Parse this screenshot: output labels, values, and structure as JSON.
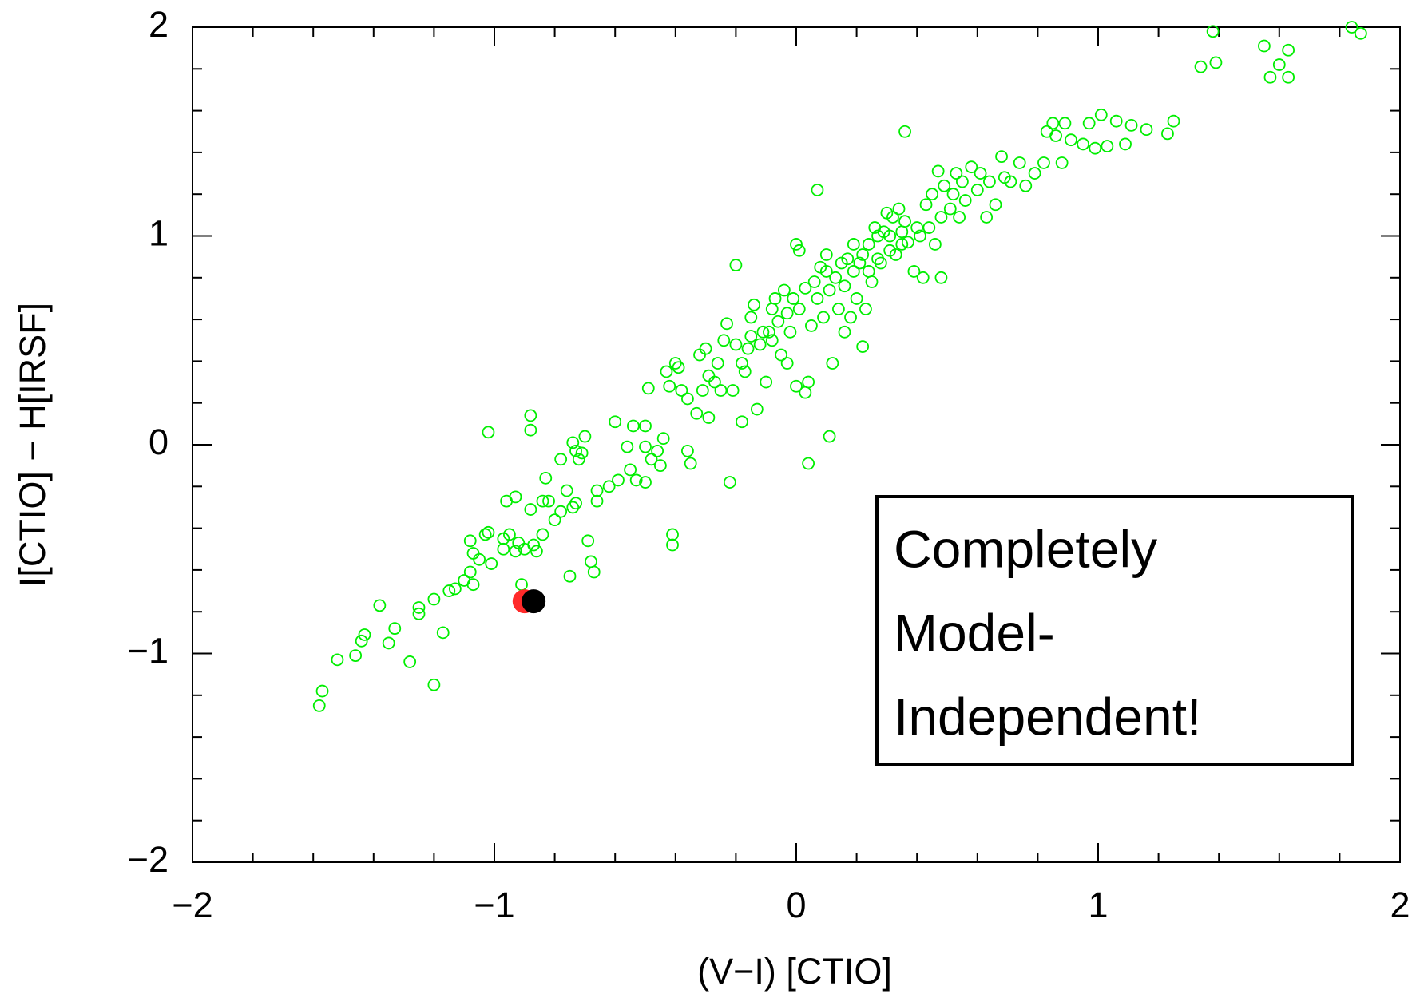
{
  "chart_data": {
    "type": "scatter",
    "x_label": "(V−I) [CTIO]",
    "y_label": "I[CTIO] − H[IRSF]",
    "annotation": [
      "Completely",
      "Model-",
      "Independent!"
    ],
    "xlim": [
      -2,
      2
    ],
    "ylim": [
      -2,
      2
    ],
    "xticks": [
      {
        "value": -2,
        "label": "−2"
      },
      {
        "value": -1,
        "label": "−1"
      },
      0,
      1,
      2
    ],
    "yticks": [
      {
        "value": -2,
        "label": "−2"
      },
      {
        "value": -1,
        "label": "−1"
      },
      0,
      1,
      2
    ],
    "x_minor_ticks": [
      -1.8,
      -1.6,
      -1.4,
      -1.2,
      -0.8,
      -0.6,
      -0.4,
      -0.2,
      0.2,
      0.4,
      0.6,
      0.8,
      1.2,
      1.4,
      1.6,
      1.8
    ],
    "y_minor_ticks": [
      -1.8,
      -1.6,
      -1.4,
      -1.2,
      -0.8,
      -0.6,
      -0.4,
      -0.2,
      0.2,
      0.4,
      0.6,
      0.8,
      1.2,
      1.4,
      1.6,
      1.8
    ],
    "series": [
      {
        "color": "#00ee00",
        "marker": "open-circle",
        "x": [
          -1.58,
          -1.57,
          -1.52,
          -1.46,
          -1.44,
          -1.43,
          -1.38,
          -1.35,
          -1.33,
          -1.28,
          -1.25,
          -1.25,
          -1.2,
          -1.2,
          -1.17,
          -1.15,
          -1.13,
          -1.1,
          -1.08,
          -1.07,
          -1.08,
          -1.07,
          -1.05,
          -1.03,
          -1.02,
          -1.02,
          -1.01,
          -0.97,
          -0.97,
          -0.96,
          -0.95,
          -0.93,
          -0.93,
          -0.92,
          -0.91,
          -0.9,
          -0.88,
          -0.88,
          -0.88,
          -0.87,
          -0.86,
          -0.84,
          -0.84,
          -0.83,
          -0.82,
          -0.8,
          -0.78,
          -0.78,
          -0.76,
          -0.75,
          -0.74,
          -0.74,
          -0.73,
          -0.73,
          -0.72,
          -0.71,
          -0.7,
          -0.69,
          -0.68,
          -0.67,
          -0.66,
          -0.66,
          -0.62,
          -0.6,
          -0.59,
          -0.56,
          -0.55,
          -0.54,
          -0.53,
          -0.5,
          -0.5,
          -0.5,
          -0.49,
          -0.48,
          -0.46,
          -0.45,
          -0.44,
          -0.43,
          -0.42,
          -0.41,
          -0.41,
          -0.4,
          -0.39,
          -0.38,
          -0.36,
          -0.36,
          -0.35,
          -0.33,
          -0.32,
          -0.31,
          -0.3,
          -0.29,
          -0.29,
          -0.27,
          -0.26,
          -0.25,
          -0.24,
          -0.23,
          -0.22,
          -0.21,
          -0.2,
          -0.2,
          -0.18,
          -0.18,
          -0.17,
          -0.16,
          -0.15,
          -0.15,
          -0.14,
          -0.13,
          -0.12,
          -0.11,
          -0.1,
          -0.09,
          -0.08,
          -0.08,
          -0.07,
          -0.06,
          -0.05,
          -0.04,
          -0.03,
          -0.03,
          -0.02,
          -0.01,
          0.0,
          0.0,
          0.01,
          0.01,
          0.03,
          0.03,
          0.04,
          0.04,
          0.05,
          0.06,
          0.07,
          0.07,
          0.08,
          0.09,
          0.1,
          0.1,
          0.11,
          0.11,
          0.12,
          0.13,
          0.14,
          0.15,
          0.16,
          0.16,
          0.17,
          0.18,
          0.19,
          0.19,
          0.2,
          0.21,
          0.22,
          0.22,
          0.23,
          0.24,
          0.24,
          0.25,
          0.26,
          0.27,
          0.27,
          0.28,
          0.29,
          0.3,
          0.31,
          0.31,
          0.32,
          0.33,
          0.34,
          0.35,
          0.35,
          0.36,
          0.36,
          0.37,
          0.39,
          0.4,
          0.41,
          0.42,
          0.43,
          0.44,
          0.45,
          0.46,
          0.47,
          0.48,
          0.48,
          0.49,
          0.51,
          0.52,
          0.53,
          0.54,
          0.55,
          0.56,
          0.58,
          0.6,
          0.61,
          0.63,
          0.64,
          0.66,
          0.68,
          0.69,
          0.71,
          0.74,
          0.76,
          0.79,
          0.82,
          0.83,
          0.85,
          0.86,
          0.88,
          0.89,
          0.91,
          0.95,
          0.97,
          0.99,
          1.01,
          1.03,
          1.06,
          1.09,
          1.11,
          1.16,
          1.23,
          1.25,
          1.34,
          1.38,
          1.39,
          1.55,
          1.57,
          1.6,
          1.63,
          1.63,
          1.84,
          1.87
        ],
        "values": [
          -1.25,
          -1.18,
          -1.03,
          -1.01,
          -0.94,
          -0.91,
          -0.77,
          -0.95,
          -0.88,
          -1.04,
          -0.81,
          -0.78,
          -1.15,
          -0.74,
          -0.9,
          -0.7,
          -0.69,
          -0.65,
          -0.61,
          -0.67,
          -0.46,
          -0.52,
          -0.55,
          -0.43,
          0.06,
          -0.42,
          -0.57,
          -0.5,
          -0.45,
          -0.27,
          -0.43,
          -0.25,
          -0.51,
          -0.47,
          -0.67,
          -0.5,
          0.14,
          0.07,
          -0.31,
          -0.48,
          -0.51,
          -0.27,
          -0.43,
          -0.16,
          -0.27,
          -0.36,
          -0.32,
          -0.07,
          -0.22,
          -0.63,
          0.01,
          -0.3,
          -0.28,
          -0.03,
          -0.07,
          -0.04,
          0.04,
          -0.46,
          -0.56,
          -0.61,
          -0.27,
          -0.22,
          -0.2,
          0.11,
          -0.17,
          -0.01,
          -0.12,
          0.09,
          -0.17,
          0.09,
          -0.01,
          -0.18,
          0.27,
          -0.07,
          -0.03,
          -0.1,
          0.03,
          0.35,
          0.28,
          -0.43,
          -0.48,
          0.39,
          0.37,
          0.26,
          0.22,
          -0.03,
          -0.09,
          0.15,
          0.43,
          0.26,
          0.46,
          0.13,
          0.33,
          0.3,
          0.39,
          0.26,
          0.5,
          0.58,
          -0.18,
          0.26,
          0.86,
          0.48,
          0.11,
          0.39,
          0.35,
          0.46,
          0.61,
          0.52,
          0.67,
          0.17,
          0.48,
          0.54,
          0.3,
          0.54,
          0.65,
          0.5,
          0.7,
          0.59,
          0.43,
          0.74,
          0.63,
          0.39,
          0.54,
          0.7,
          0.28,
          0.96,
          0.93,
          0.65,
          0.75,
          0.25,
          -0.09,
          0.3,
          0.57,
          0.78,
          1.22,
          0.7,
          0.85,
          0.61,
          0.91,
          0.83,
          0.04,
          0.74,
          0.39,
          0.8,
          0.65,
          0.87,
          0.76,
          0.54,
          0.89,
          0.61,
          0.96,
          0.83,
          0.7,
          0.87,
          0.47,
          0.91,
          0.65,
          0.83,
          0.96,
          0.78,
          1.04,
          0.89,
          1.0,
          0.87,
          1.02,
          1.11,
          0.93,
          1.0,
          1.09,
          0.91,
          1.13,
          0.96,
          1.02,
          1.5,
          1.07,
          0.97,
          0.83,
          1.04,
          1.0,
          0.8,
          1.15,
          1.04,
          1.2,
          0.96,
          1.31,
          0.8,
          1.09,
          1.24,
          1.13,
          1.2,
          1.3,
          1.09,
          1.26,
          1.17,
          1.33,
          1.22,
          1.3,
          1.09,
          1.26,
          1.15,
          1.38,
          1.28,
          1.26,
          1.35,
          1.24,
          1.3,
          1.35,
          1.5,
          1.54,
          1.48,
          1.35,
          1.54,
          1.46,
          1.44,
          1.54,
          1.42,
          1.58,
          1.43,
          1.55,
          1.44,
          1.53,
          1.51,
          1.49,
          1.55,
          1.81,
          1.98,
          1.83,
          1.91,
          1.76,
          1.82,
          1.89,
          1.76,
          2.0,
          1.97
        ]
      },
      {
        "color": "#ff2a2a",
        "marker": "filled-circle",
        "x": [
          -0.9
        ],
        "values": [
          -0.75
        ]
      },
      {
        "color": "#000000",
        "marker": "filled-circle",
        "x": [
          -0.87
        ],
        "values": [
          -0.75
        ]
      }
    ]
  }
}
